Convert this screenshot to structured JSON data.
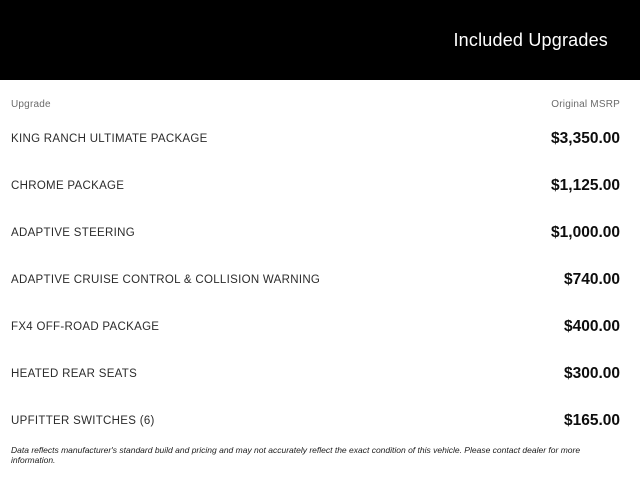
{
  "header": {
    "title": "Included Upgrades"
  },
  "table": {
    "columns": {
      "upgrade": "Upgrade",
      "msrp": "Original MSRP"
    },
    "rows": [
      {
        "upgrade": "KING RANCH ULTIMATE PACKAGE",
        "msrp": "$3,350.00"
      },
      {
        "upgrade": "CHROME PACKAGE",
        "msrp": "$1,125.00"
      },
      {
        "upgrade": "ADAPTIVE STEERING",
        "msrp": "$1,000.00"
      },
      {
        "upgrade": "ADAPTIVE CRUISE CONTROL & COLLISION WARNING",
        "msrp": "$740.00"
      },
      {
        "upgrade": "FX4 OFF-ROAD PACKAGE",
        "msrp": "$400.00"
      },
      {
        "upgrade": "HEATED REAR SEATS",
        "msrp": "$300.00"
      },
      {
        "upgrade": "UPFITTER SWITCHES (6)",
        "msrp": "$165.00"
      }
    ]
  },
  "footer": {
    "disclaimer": "Data reflects manufacturer's standard build and pricing and may not accurately reflect the exact condition of this vehicle. Please contact dealer for more information."
  },
  "colors": {
    "header_bg": "#000000",
    "header_text": "#ffffff",
    "muted_text": "#6b6b6b",
    "price_text": "#0d0d0d"
  }
}
